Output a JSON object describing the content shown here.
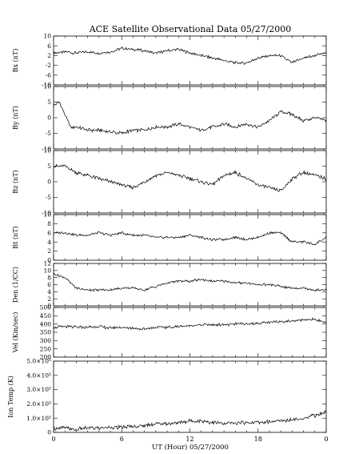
{
  "chart_data": {
    "type": "line",
    "title": "ACE Satellite Observational Data   05/27/2000",
    "xlabel": "UT (Hour)   05/27/2000",
    "x_ticks": [
      "0",
      "6",
      "12",
      "18",
      "0"
    ],
    "xlim": [
      0,
      24
    ],
    "panels": [
      {
        "ylabel": "Bx (nT)",
        "ylim": [
          -10,
          10
        ],
        "yticks": [
          {
            "v": -10,
            "t": "-10"
          },
          {
            "v": -6,
            "t": "-6"
          },
          {
            "v": -2,
            "t": "-2"
          },
          {
            "v": 2,
            "t": "2"
          },
          {
            "v": 6,
            "t": "6"
          },
          {
            "v": 10,
            "t": "10"
          }
        ],
        "series": [
          {
            "x": [
              0,
              1,
              2,
              3,
              4,
              5,
              6,
              7,
              8,
              9,
              10,
              11,
              12,
              13,
              14,
              15,
              16,
              17,
              18,
              19,
              20,
              21,
              22,
              23,
              24
            ],
            "y": [
              3,
              3.5,
              3,
              3.5,
              3,
              3.5,
              5,
              4.5,
              4,
              3,
              4,
              4.5,
              3,
              2,
              1,
              0,
              -1,
              -1,
              1,
              2,
              2,
              -1,
              1,
              2,
              3
            ]
          }
        ]
      },
      {
        "ylabel": "By (nT)",
        "ylim": [
          -10,
          10
        ],
        "yticks": [
          {
            "v": -10,
            "t": "-10"
          },
          {
            "v": -5,
            "t": "-5"
          },
          {
            "v": 0,
            "t": "0"
          },
          {
            "v": 5,
            "t": "5"
          },
          {
            "v": 10,
            "t": "10"
          }
        ],
        "series": [
          {
            "x": [
              0,
              0.5,
              1,
              1.5,
              2,
              3,
              4,
              5,
              6,
              7,
              8,
              9,
              10,
              11,
              12,
              13,
              14,
              15,
              16,
              17,
              18,
              19,
              20,
              21,
              22,
              23,
              24
            ],
            "y": [
              4,
              5,
              1,
              -3,
              -3,
              -4,
              -4,
              -4.5,
              -5,
              -4,
              -4,
              -3,
              -3,
              -2,
              -3,
              -4,
              -3,
              -2,
              -3,
              -2,
              -3,
              -1,
              2,
              1,
              -1,
              0,
              -1
            ]
          }
        ]
      },
      {
        "ylabel": "Bz (nT)",
        "ylim": [
          -10,
          10
        ],
        "yticks": [
          {
            "v": -10,
            "t": "-10"
          },
          {
            "v": -5,
            "t": "-5"
          },
          {
            "v": 0,
            "t": "0"
          },
          {
            "v": 5,
            "t": "5"
          },
          {
            "v": 10,
            "t": "10"
          }
        ],
        "series": [
          {
            "x": [
              0,
              1,
              2,
              3,
              4,
              5,
              6,
              7,
              8,
              9,
              10,
              11,
              12,
              13,
              14,
              15,
              16,
              17,
              18,
              19,
              20,
              21,
              22,
              23,
              24
            ],
            "y": [
              5,
              5,
              3,
              2,
              1,
              0,
              -1,
              -2,
              0,
              2,
              3,
              2,
              1,
              0,
              -1,
              2,
              3,
              1,
              -1,
              -2,
              -3,
              1,
              3,
              2,
              1
            ]
          }
        ]
      },
      {
        "ylabel": "Bt (nT)",
        "ylim": [
          0,
          10
        ],
        "yticks": [
          {
            "v": 0,
            "t": "0"
          },
          {
            "v": 2,
            "t": "2"
          },
          {
            "v": 4,
            "t": "4"
          },
          {
            "v": 6,
            "t": "6"
          },
          {
            "v": 8,
            "t": "8"
          },
          {
            "v": 10,
            "t": "10"
          }
        ],
        "series": [
          {
            "x": [
              0,
              1,
              2,
              3,
              4,
              5,
              6,
              7,
              8,
              9,
              10,
              11,
              12,
              13,
              14,
              15,
              16,
              17,
              18,
              19,
              20,
              21,
              22,
              23,
              24
            ],
            "y": [
              6,
              6,
              5.5,
              5.5,
              6,
              5.5,
              6,
              5.5,
              5.5,
              5,
              5,
              5,
              5.5,
              5,
              4.5,
              4.5,
              5,
              4.5,
              5,
              6,
              6,
              4,
              4,
              3.5,
              5
            ]
          }
        ]
      },
      {
        "ylabel": "Den (1/CC)",
        "ylim": [
          0,
          12
        ],
        "yticks": [
          {
            "v": 0,
            "t": "0"
          },
          {
            "v": 2,
            "t": "2"
          },
          {
            "v": 4,
            "t": "4"
          },
          {
            "v": 6,
            "t": "6"
          },
          {
            "v": 8,
            "t": "8"
          },
          {
            "v": 10,
            "t": "10"
          },
          {
            "v": 12,
            "t": "12"
          }
        ],
        "series": [
          {
            "x": [
              0,
              1,
              2,
              3,
              4,
              5,
              6,
              7,
              8,
              9,
              10,
              11,
              12,
              13,
              14,
              15,
              16,
              17,
              18,
              19,
              20,
              21,
              22,
              23,
              24
            ],
            "y": [
              9,
              8,
              5,
              4.5,
              4.5,
              4.5,
              5,
              5,
              4.5,
              5.5,
              6.5,
              7,
              7,
              7.5,
              7,
              7,
              6.5,
              6.5,
              6,
              6,
              5.5,
              5,
              5,
              4.5,
              4.5
            ]
          }
        ]
      },
      {
        "ylabel": "Vel (Km/sec)",
        "ylim": [
          200,
          500
        ],
        "yticks": [
          {
            "v": 200,
            "t": "200"
          },
          {
            "v": 250,
            "t": "250"
          },
          {
            "v": 300,
            "t": "300"
          },
          {
            "v": 350,
            "t": "350"
          },
          {
            "v": 400,
            "t": "400"
          },
          {
            "v": 450,
            "t": "450"
          },
          {
            "v": 500,
            "t": "500"
          }
        ],
        "series": [
          {
            "x": [
              0,
              1,
              2,
              3,
              4,
              5,
              6,
              7,
              8,
              9,
              10,
              11,
              12,
              13,
              14,
              15,
              16,
              17,
              18,
              19,
              20,
              21,
              22,
              23,
              24
            ],
            "y": [
              380,
              385,
              380,
              380,
              385,
              375,
              380,
              375,
              370,
              380,
              380,
              385,
              390,
              395,
              395,
              395,
              400,
              400,
              405,
              410,
              415,
              420,
              425,
              430,
              410
            ]
          }
        ]
      },
      {
        "ylabel": "Ion Temp (K)",
        "ylim": [
          0,
          500000
        ],
        "yticks": [
          {
            "v": 0,
            "t": "0"
          },
          {
            "v": 100000,
            "t": "1.0×10⁵"
          },
          {
            "v": 200000,
            "t": "2.0×10⁵"
          },
          {
            "v": 300000,
            "t": "3.0×10⁵"
          },
          {
            "v": 400000,
            "t": "4.0×10⁵"
          },
          {
            "v": 500000,
            "t": "5.0×10⁵"
          }
        ],
        "series": [
          {
            "x": [
              0,
              1,
              2,
              3,
              4,
              5,
              6,
              7,
              8,
              9,
              10,
              11,
              12,
              13,
              14,
              15,
              16,
              17,
              18,
              19,
              20,
              21,
              22,
              23,
              24
            ],
            "y": [
              30000,
              30000,
              20000,
              30000,
              30000,
              35000,
              35000,
              40000,
              50000,
              60000,
              60000,
              70000,
              80000,
              80000,
              70000,
              60000,
              65000,
              70000,
              70000,
              75000,
              80000,
              90000,
              100000,
              120000,
              140000
            ]
          }
        ]
      }
    ]
  }
}
